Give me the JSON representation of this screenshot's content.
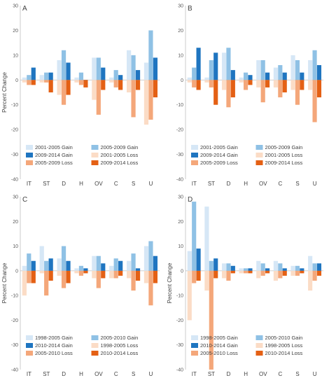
{
  "chart_data": [
    {
      "type": "bar",
      "panel_label": "A",
      "ylabel": "Percent Change",
      "ylim": [
        -40,
        30
      ],
      "yticks": [
        -40,
        -30,
        -20,
        -10,
        0,
        10,
        20,
        30
      ],
      "grid": false,
      "legend": "bottom",
      "categories": [
        "IT",
        "ST",
        "D",
        "H",
        "OV",
        "C",
        "S",
        "U"
      ],
      "series": [
        {
          "name": "2001-2005 Gain",
          "color": "#d6e7f6",
          "values": [
            1,
            2,
            8,
            1,
            9,
            1,
            12,
            7
          ]
        },
        {
          "name": "2005-2009 Gain",
          "color": "#8fc1e5",
          "values": [
            2,
            3,
            12,
            3,
            9,
            4,
            10,
            20
          ]
        },
        {
          "name": "2009-2014 Gain",
          "color": "#1f75c0",
          "values": [
            5,
            3,
            7,
            0,
            5,
            2,
            4,
            9
          ]
        },
        {
          "name": "2001-2005 Loss",
          "color": "#fbdcc6",
          "values": [
            -1,
            -1,
            -6,
            -1,
            -8,
            -1,
            -5,
            -18
          ]
        },
        {
          "name": "2005-2009 Loss",
          "color": "#f4a77a",
          "values": [
            -2,
            -1,
            -10,
            -2,
            -14,
            -3,
            -15,
            -16
          ]
        },
        {
          "name": "2009-2014 Loss",
          "color": "#e46014",
          "values": [
            -2,
            -5,
            -6,
            -3,
            -4,
            -4,
            -4,
            -7
          ]
        }
      ]
    },
    {
      "type": "bar",
      "panel_label": "B",
      "ylabel": "",
      "ylim": [
        -40,
        30
      ],
      "yticks": [
        -40,
        -30,
        -20,
        -10,
        0,
        10,
        20,
        30
      ],
      "grid": false,
      "legend": "bottom",
      "categories": [
        "IT",
        "ST",
        "D",
        "H",
        "OV",
        "C",
        "S",
        "U"
      ],
      "series": [
        {
          "name": "2001-2005 Gain",
          "color": "#d6e7f6",
          "values": [
            1,
            1,
            11,
            1,
            8,
            5,
            10,
            8
          ]
        },
        {
          "name": "2005-2009 Gain",
          "color": "#8fc1e5",
          "values": [
            5,
            8,
            13,
            3,
            8,
            6,
            8,
            12
          ]
        },
        {
          "name": "2009-2014 Gain",
          "color": "#1f75c0",
          "values": [
            13,
            11,
            4,
            2,
            3,
            3,
            3,
            6
          ]
        },
        {
          "name": "2001-2005 Loss",
          "color": "#fbdcc6",
          "values": [
            -1,
            -1,
            -4,
            -1,
            -3,
            -3,
            -4,
            -4
          ]
        },
        {
          "name": "2005-2009 Loss",
          "color": "#f4a77a",
          "values": [
            -3,
            -3,
            -11,
            -4,
            -9,
            -7,
            -10,
            -17
          ]
        },
        {
          "name": "2009-2014 Loss",
          "color": "#e46014",
          "values": [
            -4,
            -10,
            -7,
            -2,
            -3,
            -5,
            -4,
            -7
          ]
        }
      ]
    },
    {
      "type": "bar",
      "panel_label": "C",
      "ylabel": "Percent Change",
      "ylim": [
        -40,
        30
      ],
      "yticks": [
        -40,
        -30,
        -20,
        -10,
        0,
        10,
        20,
        30
      ],
      "grid": false,
      "legend": "bottom",
      "categories": [
        "IT",
        "ST",
        "D",
        "H",
        "OV",
        "C",
        "S",
        "U"
      ],
      "series": [
        {
          "name": "1998-2005 Gain",
          "color": "#d6e7f6",
          "values": [
            2,
            10,
            5,
            1,
            6,
            2,
            4,
            10
          ]
        },
        {
          "name": "2005-2010 Gain",
          "color": "#8fc1e5",
          "values": [
            7,
            4,
            10,
            2,
            6,
            5,
            7,
            12
          ]
        },
        {
          "name": "2010-2014 Gain",
          "color": "#1f75c0",
          "values": [
            4,
            5,
            4,
            1,
            3,
            4,
            1,
            6
          ]
        },
        {
          "name": "1998-2005 Loss",
          "color": "#fbdcc6",
          "values": [
            -10,
            -1,
            -2,
            -1,
            -3,
            -3,
            -3,
            -5
          ]
        },
        {
          "name": "2005-2010 Loss",
          "color": "#f4a77a",
          "values": [
            -5,
            -10,
            -7,
            -2,
            -7,
            -3,
            -8,
            -14
          ]
        },
        {
          "name": "2010-2014 Loss",
          "color": "#e46014",
          "values": [
            -5,
            -4,
            -5,
            -1,
            -3,
            -2,
            -4,
            -5
          ]
        }
      ]
    },
    {
      "type": "bar",
      "panel_label": "D",
      "ylabel": "Percent Change",
      "ylim": [
        -40,
        30
      ],
      "yticks": [
        -40,
        -30,
        -20,
        -10,
        0,
        10,
        20,
        30
      ],
      "grid": false,
      "legend": "bottom",
      "categories": [
        "IT",
        "ST",
        "D",
        "H",
        "OV",
        "C",
        "S",
        "U"
      ],
      "series": [
        {
          "name": "1998-2005 Gain",
          "color": "#d6e7f6",
          "values": [
            8,
            26,
            3,
            1,
            4,
            4,
            2,
            6
          ]
        },
        {
          "name": "2005-2010 Gain",
          "color": "#8fc1e5",
          "values": [
            28,
            4,
            3,
            1,
            3,
            3,
            2,
            3
          ]
        },
        {
          "name": "2010-2014 Gain",
          "color": "#1f75c0",
          "values": [
            9,
            5,
            2,
            1,
            1,
            1,
            1,
            3
          ]
        },
        {
          "name": "1998-2005 Loss",
          "color": "#fbdcc6",
          "values": [
            -20,
            -8,
            -3,
            -1,
            -3,
            -4,
            -2,
            -8
          ]
        },
        {
          "name": "2005-2010 Loss",
          "color": "#f4a77a",
          "values": [
            -5,
            -40,
            -4,
            -1,
            -2,
            -3,
            -2,
            -4
          ]
        },
        {
          "name": "2010-2014 Loss",
          "color": "#e46014",
          "values": [
            -4,
            -3,
            -1,
            -1,
            -1,
            -2,
            -1,
            -2
          ]
        }
      ]
    }
  ]
}
